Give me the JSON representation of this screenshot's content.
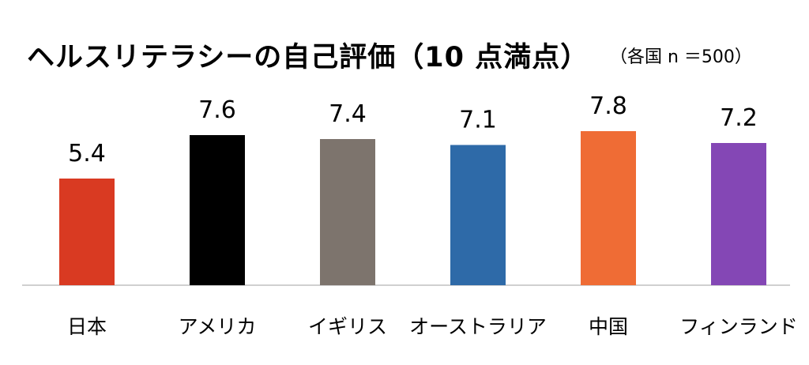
{
  "chart_data": {
    "type": "bar",
    "title": "ヘルスリテラシーの自己評価（10 点満点）",
    "subtitle": "（各国 n ＝500）",
    "categories": [
      "日本",
      "アメリカ",
      "イギリス",
      "オーストラリア",
      "中国",
      "フィンランド"
    ],
    "values": [
      5.4,
      7.6,
      7.4,
      7.1,
      7.8,
      7.2
    ],
    "value_labels": [
      "5.4",
      "7.6",
      "7.4",
      "7.1",
      "7.8",
      "7.2"
    ],
    "colors": [
      "#d93a22",
      "#000000",
      "#7d746d",
      "#2e6aa8",
      "#ef6c35",
      "#8447b5"
    ],
    "ylim": [
      0,
      10
    ],
    "grid": false,
    "legend": "none"
  }
}
